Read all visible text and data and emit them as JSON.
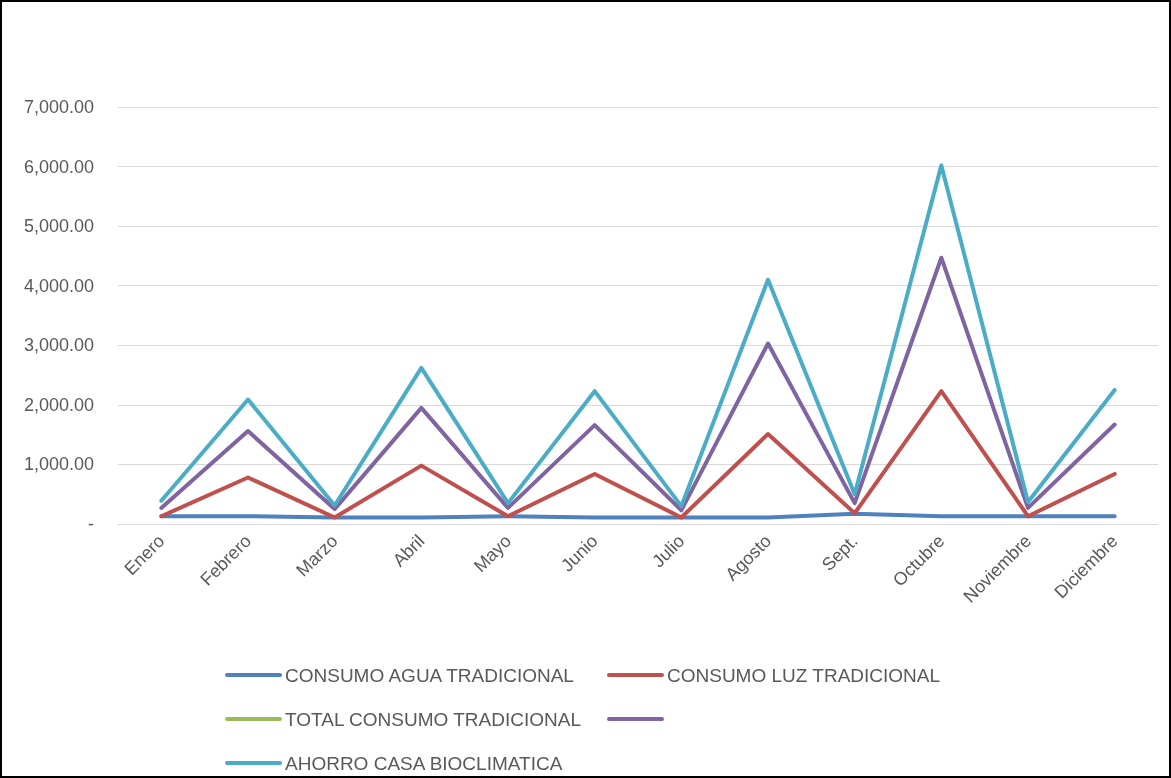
{
  "chart_data": {
    "type": "line",
    "categories": [
      "Enero",
      "Febrero",
      "Marzo",
      "Abril",
      "Mayo",
      "Junio",
      "Julio",
      "Agosto",
      "Sept.",
      "Octubre",
      "Noviembre",
      "Diciembre"
    ],
    "series": [
      {
        "name": "CONSUMO AGUA TRADICIONAL",
        "color": "#4f81bd",
        "values": [
          130,
          130,
          110,
          110,
          130,
          110,
          110,
          110,
          170,
          130,
          130,
          130
        ]
      },
      {
        "name": "CONSUMO LUZ TRADICIONAL",
        "color": "#c0504d",
        "values": [
          130,
          780,
          110,
          980,
          130,
          840,
          110,
          1510,
          180,
          2230,
          130,
          840
        ]
      },
      {
        "name": "TOTAL CONSUMO TRADICIONAL",
        "color": "#9bbb59",
        "values": [
          null,
          null,
          null,
          null,
          null,
          null,
          null,
          null,
          null,
          null,
          null,
          null
        ]
      },
      {
        "color": "#8064a2",
        "values": [
          270,
          1560,
          250,
          1950,
          270,
          1660,
          230,
          3030,
          350,
          4470,
          270,
          1670
        ]
      },
      {
        "name": "AHORRO CASA BIOCLIMATICA",
        "color": "#4bacc6",
        "values": [
          390,
          2090,
          310,
          2620,
          350,
          2230,
          300,
          4100,
          500,
          6020,
          370,
          2250
        ]
      }
    ],
    "ylim": [
      0,
      7000
    ],
    "yticks": [
      {
        "value": 0,
        "label": "-"
      },
      {
        "value": 1000,
        "label": "1,000.00"
      },
      {
        "value": 2000,
        "label": "2,000.00"
      },
      {
        "value": 3000,
        "label": "3,000.00"
      },
      {
        "value": 4000,
        "label": "4,000.00"
      },
      {
        "value": 5000,
        "label": "5,000.00"
      },
      {
        "value": 6000,
        "label": "6,000.00"
      },
      {
        "value": 7000,
        "label": "7,000.00"
      }
    ],
    "grid": "y",
    "legend": "bottom",
    "marker": "none",
    "line_style": "solid"
  }
}
